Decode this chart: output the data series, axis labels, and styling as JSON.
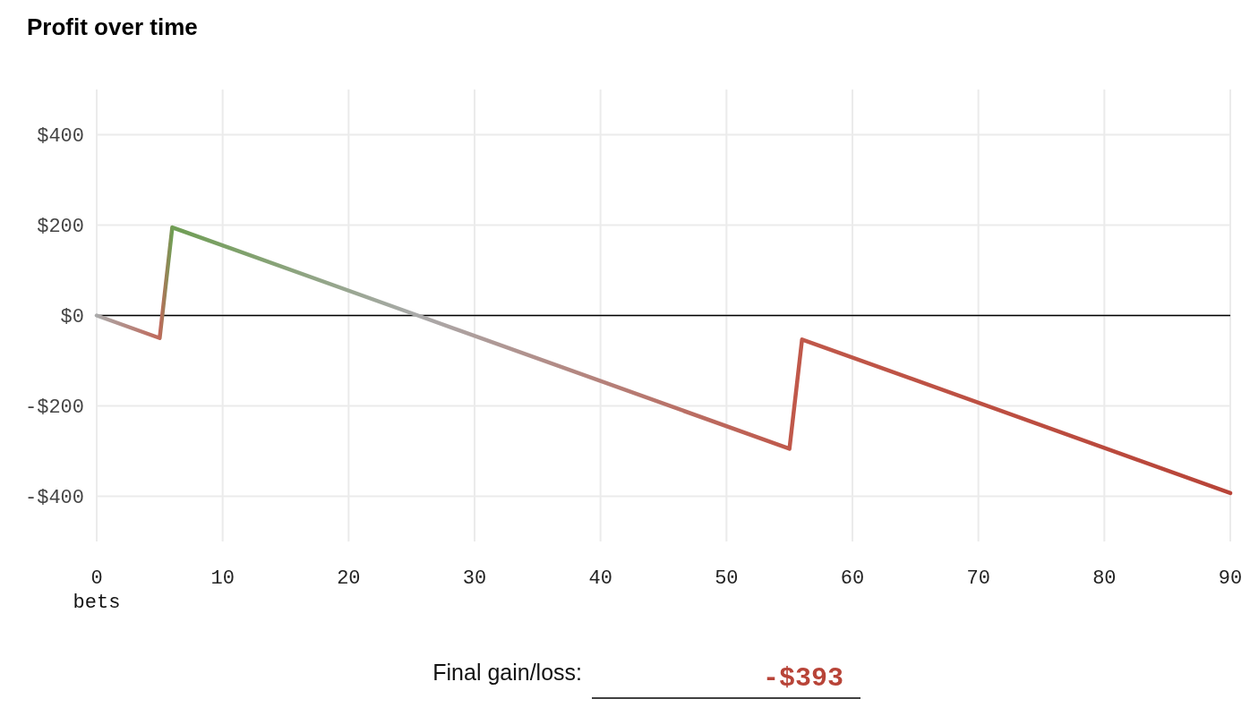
{
  "chart_data": {
    "type": "line",
    "title": "Profit over time",
    "xlabel": "bets",
    "series": [
      {
        "x": [
          0,
          5,
          6,
          25.5,
          55,
          56,
          90
        ],
        "values": [
          0,
          -50,
          195,
          0,
          -295,
          -53,
          -393
        ],
        "colors": [
          "#aaaaaa",
          "#c0685a",
          "#6f9e54",
          "#aaaaaa",
          "#c0584a",
          "#c0584a",
          "#b84438"
        ]
      }
    ],
    "xlim": [
      0,
      90
    ],
    "xticks": [
      0,
      10,
      20,
      30,
      40,
      50,
      60,
      70,
      80,
      90
    ],
    "ylim": [
      -500,
      500
    ],
    "yticks": [
      {
        "value": -400,
        "label": "-$400"
      },
      {
        "value": -200,
        "label": "-$200"
      },
      {
        "value": 0,
        "label": "$0"
      },
      {
        "value": 200,
        "label": "$200"
      },
      {
        "value": 400,
        "label": "$400"
      }
    ],
    "grid": true,
    "marker": "none",
    "line_style": "solid",
    "ref_lines": [
      {
        "axis": "y",
        "value": 0,
        "color": "#000000"
      }
    ],
    "annotations": [
      "Final gain/loss:",
      "-$393"
    ]
  }
}
